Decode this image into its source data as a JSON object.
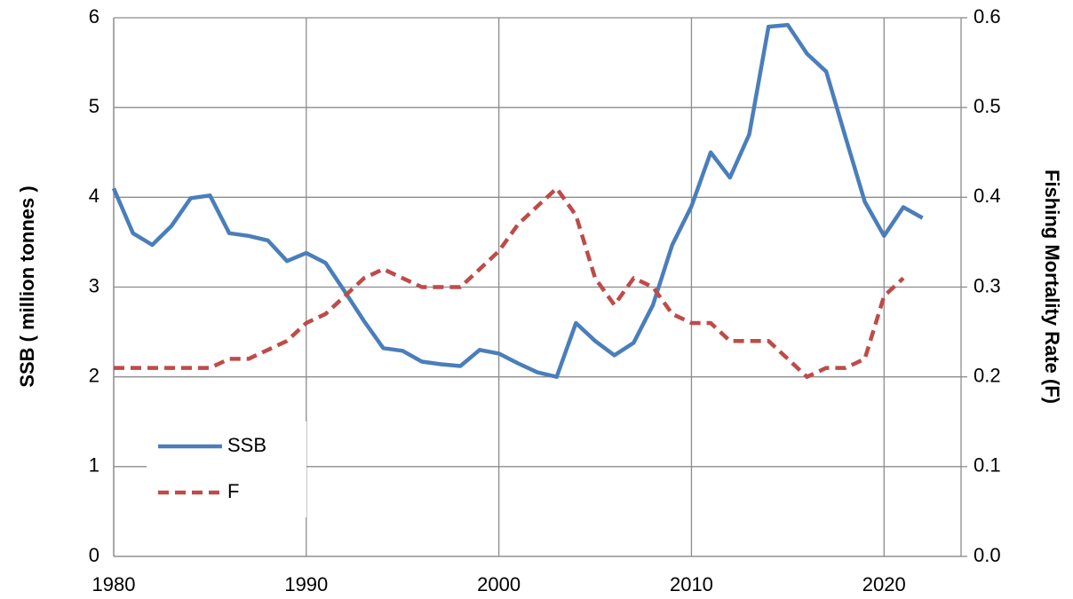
{
  "chart_data": {
    "type": "line",
    "y_label": "SSB ( million tonnes )",
    "y2_label": "Fishing Mortality Rate (F)",
    "x": [
      1980,
      1981,
      1982,
      1983,
      1984,
      1985,
      1986,
      1987,
      1988,
      1989,
      1990,
      1991,
      1992,
      1993,
      1994,
      1995,
      1996,
      1997,
      1998,
      1999,
      2000,
      2001,
      2002,
      2003,
      2004,
      2005,
      2006,
      2007,
      2008,
      2009,
      2010,
      2011,
      2012,
      2013,
      2014,
      2015,
      2016,
      2017,
      2018,
      2019,
      2020,
      2021,
      2022
    ],
    "series": [
      {
        "name": "SSB",
        "color": "#4a7ebb",
        "dashed": false,
        "values": [
          4.1,
          3.6,
          3.47,
          3.68,
          3.99,
          4.02,
          3.6,
          3.57,
          3.52,
          3.29,
          3.38,
          3.27,
          2.95,
          2.62,
          2.32,
          2.29,
          2.17,
          2.14,
          2.12,
          2.3,
          2.26,
          2.15,
          2.05,
          2.0,
          2.6,
          2.4,
          2.24,
          2.38,
          2.8,
          3.47,
          3.9,
          4.5,
          4.22,
          4.7,
          5.9,
          5.92,
          5.6,
          5.4,
          4.67,
          3.95,
          3.57,
          3.89,
          3.77
        ]
      },
      {
        "name": "F",
        "color": "#be4b48",
        "dashed": true,
        "axis": "y2",
        "values": [
          0.21,
          0.21,
          0.21,
          0.21,
          0.21,
          0.21,
          0.22,
          0.22,
          0.23,
          0.24,
          0.26,
          0.27,
          0.29,
          0.31,
          0.32,
          0.31,
          0.3,
          0.3,
          0.3,
          0.32,
          0.34,
          0.37,
          0.39,
          0.41,
          0.38,
          0.31,
          0.28,
          0.31,
          0.3,
          0.27,
          0.26,
          0.26,
          0.24,
          0.24,
          0.24,
          0.22,
          0.2,
          0.21,
          0.21,
          0.22,
          0.29,
          0.31,
          null
        ]
      }
    ],
    "xlim": [
      1980,
      2024
    ],
    "xticks": [
      1980,
      1990,
      2000,
      2010,
      2020
    ],
    "ylim": [
      0,
      6
    ],
    "yticks": [
      0,
      1,
      2,
      3,
      4,
      5,
      6
    ],
    "y2lim": [
      0,
      0.6
    ],
    "y2ticks": [
      {
        "value": 0,
        "label": "0.0"
      },
      0.1,
      0.2,
      0.3,
      0.4,
      0.5,
      0.6
    ],
    "grid": true,
    "legend": "lower left"
  }
}
